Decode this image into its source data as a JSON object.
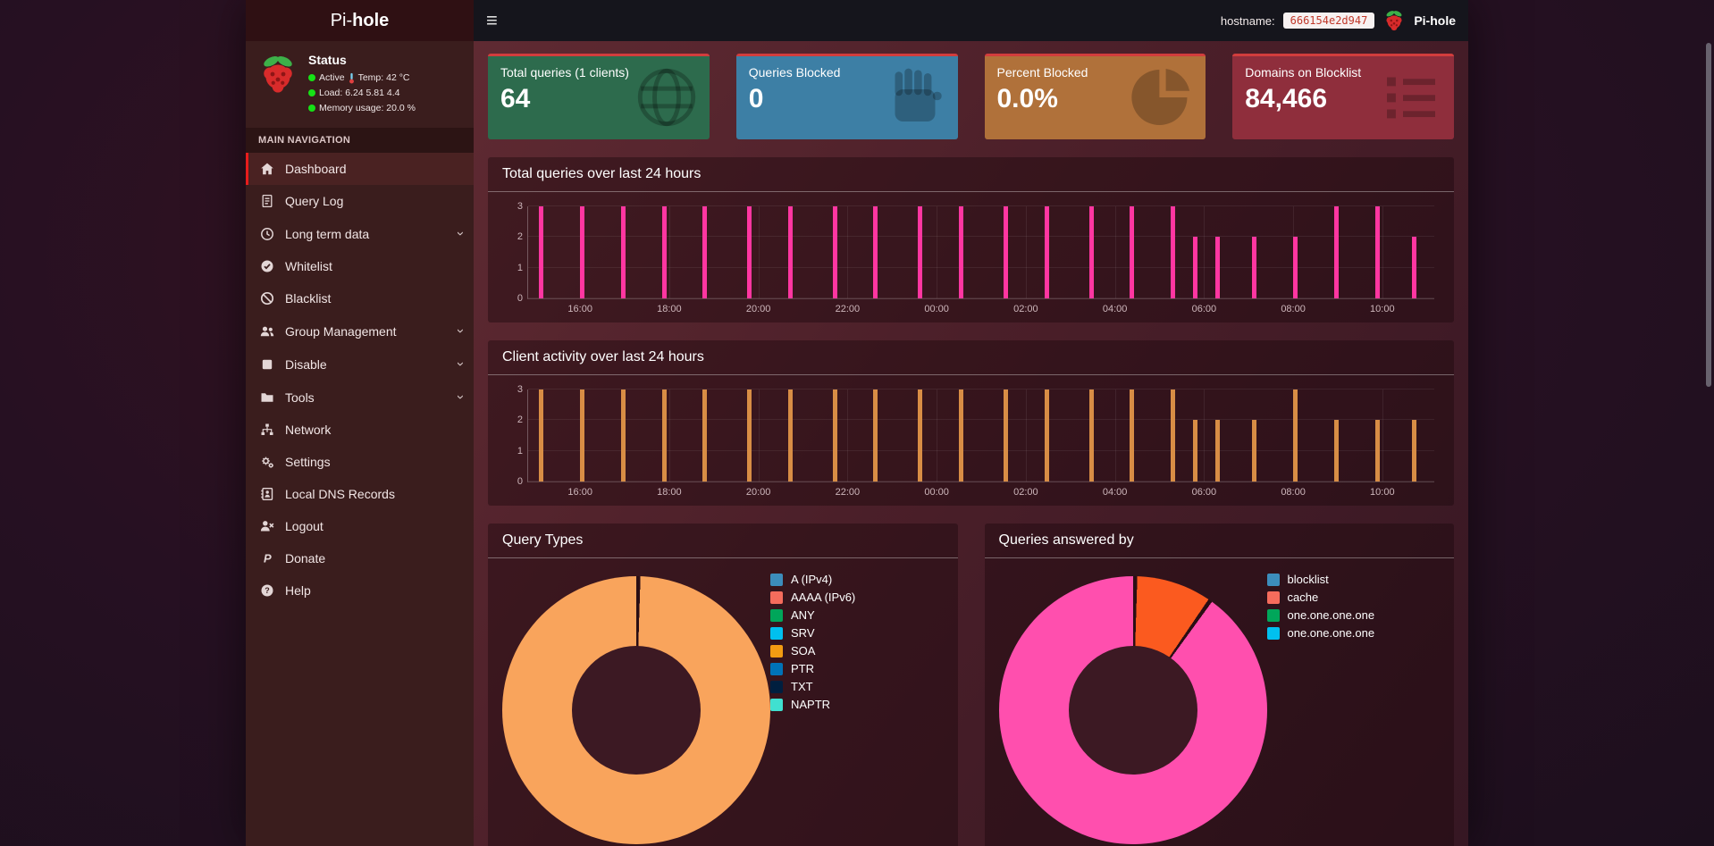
{
  "navbar": {
    "brand_prefix": "Pi-",
    "brand_bold": "hole",
    "hostname_label": "hostname:",
    "hostname_value": "666154e2d947",
    "app_label": "Pi-hole"
  },
  "sidebar": {
    "status": {
      "title": "Status",
      "active": "Active",
      "temp": "Temp: 42 °C",
      "load": "Load: 6.24  5.81  4.4",
      "memory": "Memory usage: 20.0 %",
      "status_color": "#16e116"
    },
    "section_label": "MAIN NAVIGATION",
    "items": [
      {
        "label": "Dashboard",
        "icon": "home-icon",
        "active": true
      },
      {
        "label": "Query Log",
        "icon": "file-icon"
      },
      {
        "label": "Long term data",
        "icon": "clock-icon",
        "chevron": true
      },
      {
        "label": "Whitelist",
        "icon": "check-circle-icon"
      },
      {
        "label": "Blacklist",
        "icon": "ban-icon"
      },
      {
        "label": "Group Management",
        "icon": "users-icon",
        "chevron": true
      },
      {
        "label": "Disable",
        "icon": "stop-icon",
        "chevron": true
      },
      {
        "label": "Tools",
        "icon": "folder-icon",
        "chevron": true
      },
      {
        "label": "Network",
        "icon": "network-icon"
      },
      {
        "label": "Settings",
        "icon": "gears-icon"
      },
      {
        "label": "Local DNS Records",
        "icon": "address-book-icon"
      },
      {
        "label": "Logout",
        "icon": "user-times-icon"
      },
      {
        "label": "Donate",
        "icon": "paypal-icon"
      },
      {
        "label": "Help",
        "icon": "question-circle-icon"
      }
    ]
  },
  "cards": [
    {
      "title": "Total queries (1 clients)",
      "value": "64",
      "icon": "globe-icon",
      "bg": "#2d6b4d"
    },
    {
      "title": "Queries Blocked",
      "value": "0",
      "icon": "hand-icon",
      "bg": "#3d7fa5"
    },
    {
      "title": "Percent Blocked",
      "value": "0.0%",
      "icon": "pie-icon",
      "bg": "#b0713a"
    },
    {
      "title": "Domains on Blocklist",
      "value": "84,466",
      "icon": "list-icon",
      "bg": "#8f2e3c"
    }
  ],
  "theme": {
    "card_top_border": "#d23d3d",
    "accent_red": "#e81c1c"
  },
  "chart_data": [
    {
      "type": "bar",
      "title": "Total queries over last 24 hours",
      "ylim": [
        0,
        3
      ],
      "yticks": [
        0,
        1,
        2,
        3
      ],
      "xticks": [
        "16:00",
        "18:00",
        "20:00",
        "22:00",
        "00:00",
        "02:00",
        "04:00",
        "06:00",
        "08:00",
        "10:00"
      ],
      "x_range": [
        "14:50",
        "11:10"
      ],
      "bar_color": "#ff36a1",
      "grid": true,
      "legend_position": "none",
      "points": [
        {
          "t": "15:05",
          "v": 3
        },
        {
          "t": "16:00",
          "v": 3
        },
        {
          "t": "16:55",
          "v": 3
        },
        {
          "t": "17:50",
          "v": 3
        },
        {
          "t": "18:45",
          "v": 3
        },
        {
          "t": "19:45",
          "v": 3
        },
        {
          "t": "20:40",
          "v": 3
        },
        {
          "t": "21:40",
          "v": 3
        },
        {
          "t": "22:35",
          "v": 3
        },
        {
          "t": "23:35",
          "v": 3
        },
        {
          "t": "00:30",
          "v": 3
        },
        {
          "t": "01:30",
          "v": 3
        },
        {
          "t": "02:25",
          "v": 3
        },
        {
          "t": "03:25",
          "v": 3
        },
        {
          "t": "04:20",
          "v": 3
        },
        {
          "t": "05:15",
          "v": 3
        },
        {
          "t": "05:45",
          "v": 2
        },
        {
          "t": "06:15",
          "v": 2
        },
        {
          "t": "07:05",
          "v": 2
        },
        {
          "t": "08:00",
          "v": 2
        },
        {
          "t": "08:55",
          "v": 3
        },
        {
          "t": "09:50",
          "v": 3
        },
        {
          "t": "10:40",
          "v": 2
        }
      ]
    },
    {
      "type": "bar",
      "title": "Client activity over last 24 hours",
      "ylim": [
        0,
        3
      ],
      "yticks": [
        0,
        1,
        2,
        3
      ],
      "xticks": [
        "16:00",
        "18:00",
        "20:00",
        "22:00",
        "00:00",
        "02:00",
        "04:00",
        "06:00",
        "08:00",
        "10:00"
      ],
      "x_range": [
        "14:50",
        "11:10"
      ],
      "bar_color": "#d88d45",
      "grid": true,
      "legend_position": "none",
      "points": [
        {
          "t": "15:05",
          "v": 3
        },
        {
          "t": "16:00",
          "v": 3
        },
        {
          "t": "16:55",
          "v": 3
        },
        {
          "t": "17:50",
          "v": 3
        },
        {
          "t": "18:45",
          "v": 3
        },
        {
          "t": "19:45",
          "v": 3
        },
        {
          "t": "20:40",
          "v": 3
        },
        {
          "t": "21:40",
          "v": 3
        },
        {
          "t": "22:35",
          "v": 3
        },
        {
          "t": "23:35",
          "v": 3
        },
        {
          "t": "00:30",
          "v": 3
        },
        {
          "t": "01:30",
          "v": 3
        },
        {
          "t": "02:25",
          "v": 3
        },
        {
          "t": "03:25",
          "v": 3
        },
        {
          "t": "04:20",
          "v": 3
        },
        {
          "t": "05:15",
          "v": 3
        },
        {
          "t": "05:45",
          "v": 2
        },
        {
          "t": "06:15",
          "v": 2
        },
        {
          "t": "07:05",
          "v": 2
        },
        {
          "t": "08:00",
          "v": 3
        },
        {
          "t": "08:55",
          "v": 2
        },
        {
          "t": "09:50",
          "v": 2
        },
        {
          "t": "10:40",
          "v": 2
        }
      ]
    },
    {
      "type": "pie",
      "title": "Query Types",
      "border_color": "#2a0e14",
      "legend_position": "right",
      "legend": [
        {
          "label": "A (IPv4)",
          "color": "#3c8dbc"
        },
        {
          "label": "AAAA (IPv6)",
          "color": "#f56c5c"
        },
        {
          "label": "ANY",
          "color": "#00a65a"
        },
        {
          "label": "SRV",
          "color": "#00c0ef"
        },
        {
          "label": "SOA",
          "color": "#f39c12"
        },
        {
          "label": "PTR",
          "color": "#0073b7"
        },
        {
          "label": "TXT",
          "color": "#001f3f"
        },
        {
          "label": "NAPTR",
          "color": "#40e0d0"
        }
      ],
      "segments": [
        {
          "label": "A (IPv4)",
          "value": 100,
          "color": "#f9a45c"
        }
      ]
    },
    {
      "type": "pie",
      "title": "Queries answered by",
      "border_color": "#2a0e14",
      "legend_position": "right",
      "legend": [
        {
          "label": "blocklist",
          "color": "#3c8dbc"
        },
        {
          "label": "cache",
          "color": "#f56c5c"
        },
        {
          "label": "one.one.one.one",
          "color": "#00a65a"
        },
        {
          "label": "one.one.one.one",
          "color": "#00c0ef"
        }
      ],
      "segments": [
        {
          "label": "cache",
          "value": 9.5,
          "color": "#fb5a1f"
        },
        {
          "label": "one.one.one.one",
          "value": 90.5,
          "color": "#ff4fae"
        }
      ]
    }
  ]
}
